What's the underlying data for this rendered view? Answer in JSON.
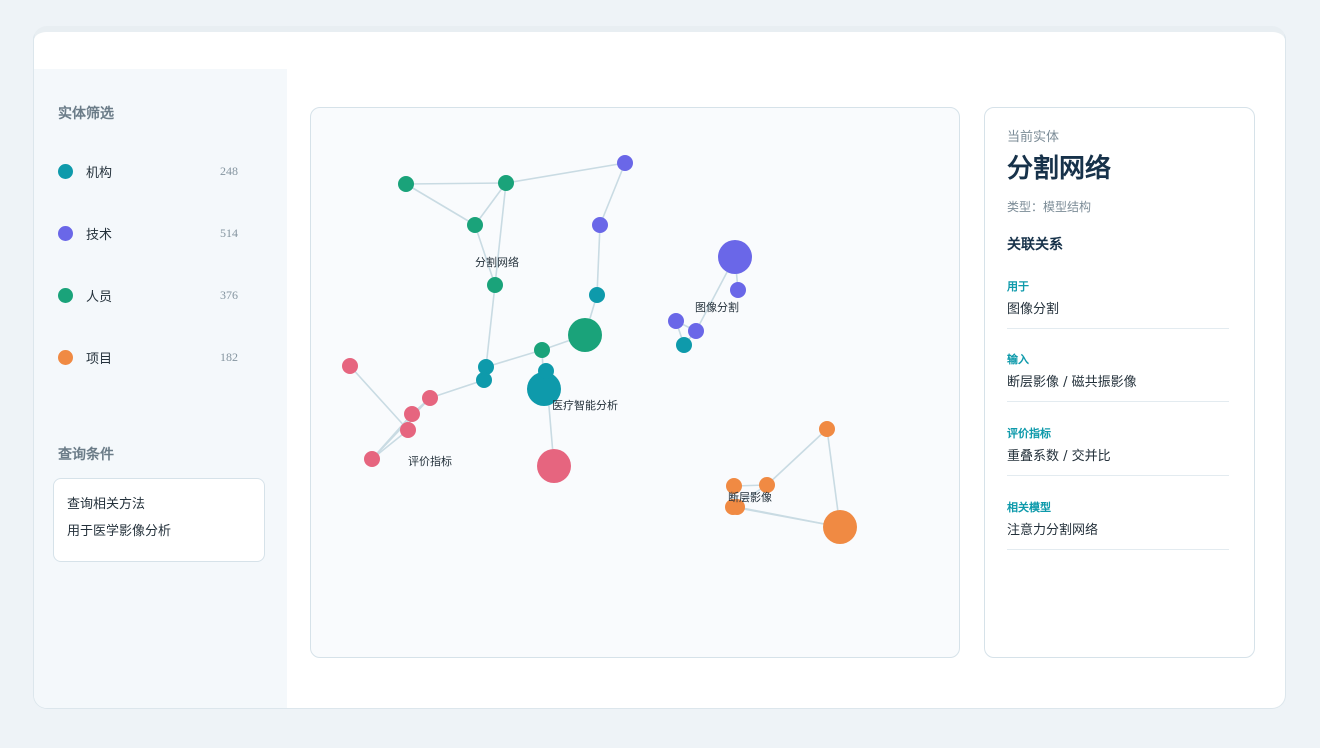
{
  "colors": {
    "org": "#0e9aab",
    "tech": "#6a67e8",
    "person": "#1aa37a",
    "project": "#f08a43",
    "metric": "#e6657f",
    "edge": "#c9dbe3",
    "accent": "#0e9aab"
  },
  "sidebar": {
    "filter_title": "实体筛选",
    "legend": [
      {
        "label": "机构",
        "count": "248",
        "color": "#0e9aab"
      },
      {
        "label": "技术",
        "count": "514",
        "color": "#6a67e8"
      },
      {
        "label": "人员",
        "count": "376",
        "color": "#1aa37a"
      },
      {
        "label": "项目",
        "count": "182",
        "color": "#f08a43"
      }
    ],
    "query_title": "查询条件",
    "query_lines": [
      "查询相关方法",
      "用于医学影像分析"
    ]
  },
  "graph": {
    "nodes": [
      {
        "id": "n1",
        "color": "#1aa37a",
        "size": "small"
      },
      {
        "id": "n2",
        "color": "#1aa37a",
        "size": "small"
      },
      {
        "id": "n3",
        "color": "#6a67e8",
        "size": "small"
      },
      {
        "id": "n4",
        "color": "#1aa37a",
        "size": "small"
      },
      {
        "id": "n5",
        "color": "#6a67e8",
        "size": "small"
      },
      {
        "id": "n6",
        "color": "#1aa37a",
        "size": "small",
        "label": "分割网络"
      },
      {
        "id": "n7",
        "color": "#0e9aab",
        "size": "small"
      },
      {
        "id": "n8",
        "color": "#1aa37a",
        "size": "large"
      },
      {
        "id": "n9",
        "color": "#1aa37a",
        "size": "small"
      },
      {
        "id": "n10",
        "color": "#0e9aab",
        "size": "small"
      },
      {
        "id": "n11",
        "color": "#0e9aab",
        "size": "small"
      },
      {
        "id": "n12",
        "color": "#0e9aab",
        "size": "large",
        "label": "医疗智能分析"
      },
      {
        "id": "n13",
        "color": "#0e9aab",
        "size": "small"
      },
      {
        "id": "n14",
        "color": "#e6657f",
        "size": "large"
      },
      {
        "id": "n15",
        "color": "#e6657f",
        "size": "small"
      },
      {
        "id": "n16",
        "color": "#e6657f",
        "size": "small"
      },
      {
        "id": "n17",
        "color": "#e6657f",
        "size": "small"
      },
      {
        "id": "n18",
        "color": "#e6657f",
        "size": "small",
        "label": "评价指标"
      },
      {
        "id": "n19",
        "color": "#e6657f",
        "size": "small"
      },
      {
        "id": "n20",
        "color": "#6a67e8",
        "size": "large"
      },
      {
        "id": "n21",
        "color": "#6a67e8",
        "size": "small"
      },
      {
        "id": "n22",
        "color": "#6a67e8",
        "size": "small"
      },
      {
        "id": "n23",
        "color": "#6a67e8",
        "size": "small",
        "label": "图像分割"
      },
      {
        "id": "n24",
        "color": "#0e9aab",
        "size": "small"
      },
      {
        "id": "n25",
        "color": "#f08a43",
        "size": "small"
      },
      {
        "id": "n26",
        "color": "#f08a43",
        "size": "small"
      },
      {
        "id": "n27",
        "color": "#f08a43",
        "size": "small",
        "label": "断层影像"
      },
      {
        "id": "n28",
        "color": "#f08a43",
        "size": "small"
      },
      {
        "id": "n29",
        "color": "#f08a43",
        "size": "large"
      },
      {
        "id": "n30",
        "color": "#f08a43",
        "size": "small"
      }
    ],
    "edges": [
      [
        "n1",
        "n2"
      ],
      [
        "n2",
        "n3"
      ],
      [
        "n1",
        "n4"
      ],
      [
        "n2",
        "n4"
      ],
      [
        "n2",
        "n6"
      ],
      [
        "n4",
        "n6"
      ],
      [
        "n3",
        "n5"
      ],
      [
        "n5",
        "n7"
      ],
      [
        "n7",
        "n8"
      ],
      [
        "n8",
        "n9"
      ],
      [
        "n9",
        "n10"
      ],
      [
        "n6",
        "n10"
      ],
      [
        "n10",
        "n11"
      ],
      [
        "n11",
        "n15"
      ],
      [
        "n9",
        "n12"
      ],
      [
        "n12",
        "n13"
      ],
      [
        "n13",
        "n14"
      ],
      [
        "n15",
        "n16"
      ],
      [
        "n16",
        "n17"
      ],
      [
        "n17",
        "n18"
      ],
      [
        "n16",
        "n19"
      ],
      [
        "n19",
        "n17"
      ],
      [
        "n15",
        "n19"
      ],
      [
        "n20",
        "n21"
      ],
      [
        "n20",
        "n23"
      ],
      [
        "n22",
        "n23"
      ],
      [
        "n22",
        "n24"
      ],
      [
        "n24",
        "n23"
      ],
      [
        "n25",
        "n26"
      ],
      [
        "n26",
        "n27"
      ],
      [
        "n27",
        "n28"
      ],
      [
        "n28",
        "n29"
      ],
      [
        "n29",
        "n30"
      ],
      [
        "n30",
        "n26"
      ],
      [
        "n25",
        "n29"
      ]
    ]
  },
  "detail": {
    "caption": "当前实体",
    "name": "分割网络",
    "type_text": "类型：模型结构",
    "relations_title": "关联关系",
    "relations": [
      {
        "key": "用于",
        "value": "图像分割"
      },
      {
        "key": "输入",
        "value": "断层影像 / 磁共振影像"
      },
      {
        "key": "评价指标",
        "value": "重叠系数 / 交并比"
      },
      {
        "key": "相关模型",
        "value": "注意力分割网络"
      }
    ]
  }
}
